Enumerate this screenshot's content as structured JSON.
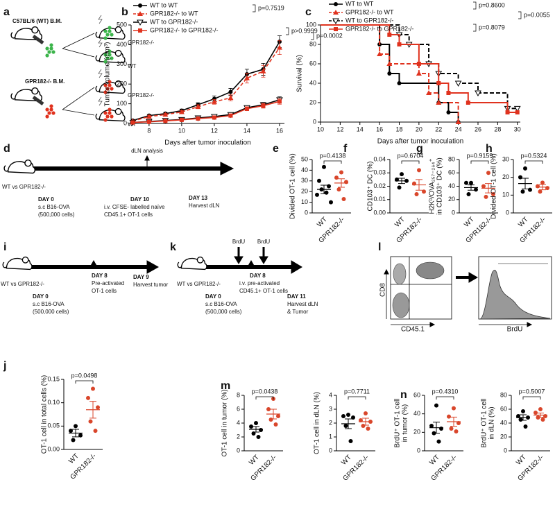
{
  "panels": {
    "a": {
      "label": "a",
      "donor_wt": "C57BL/6 (WT) B.M.",
      "donor_ko": "GPR182-/- B.M.",
      "recipients": [
        "GPR182-/-",
        "WT",
        "GPR182-/-",
        "WT"
      ]
    },
    "d": {
      "label": "d",
      "group": "WT vs GPR182-/-",
      "marker": "dLN analysis",
      "steps": [
        {
          "day": "DAY 0",
          "lines": [
            "s.c B16-OVA",
            "(500,000 cells)"
          ]
        },
        {
          "day": "DAY 10",
          "lines": [
            "i.v. CFSE- labelled naïve",
            "CD45.1+  OT-1 cells"
          ]
        },
        {
          "day": "DAY 13",
          "lines": [
            "Harvest dLN"
          ]
        }
      ]
    },
    "i": {
      "label": "i",
      "group": "WT vs GPR182-/-",
      "steps": [
        {
          "day": "DAY 0",
          "lines": [
            "s.c B16-OVA",
            "(500,000 cells)"
          ]
        },
        {
          "day": "DAY 8",
          "lines": [
            "Pre-activated",
            "OT-1 cells"
          ]
        },
        {
          "day": "DAY 9",
          "lines": [
            "Harvest tumor"
          ]
        }
      ]
    },
    "k": {
      "label": "k",
      "group": "WT vs GPR182-/-",
      "pulses": [
        "BrdU",
        "BrdU"
      ],
      "steps": [
        {
          "day": "DAY 0",
          "lines": [
            "s.c B16-OVA",
            "(500,000 cells)"
          ]
        },
        {
          "day": "DAY 8",
          "lines": [
            "i.v. pre-activated",
            "CD45.1+ OT-1 cells"
          ]
        },
        {
          "day": "DAY 11",
          "lines": [
            "Harvest dLN",
            "& Tumor"
          ]
        }
      ]
    },
    "l": {
      "label": "l",
      "y_axis": "CD8",
      "x_axis": "CD45.1",
      "histogram_axis": "BrdU"
    }
  },
  "chart_data": [
    {
      "type": "line",
      "label": "b",
      "xlabel": "Days after tumor inoculation",
      "ylabel": "Tumor volume (mm³)",
      "x": [
        7,
        8,
        9,
        10,
        11,
        12,
        13,
        14,
        15,
        16
      ],
      "xlim": [
        6.9,
        16.3
      ],
      "xticks": [
        8,
        10,
        12,
        14,
        16
      ],
      "ylim": [
        0,
        500
      ],
      "yticks": [
        0,
        100,
        200,
        300,
        400,
        500
      ],
      "series": [
        {
          "name": "WT to WT",
          "color": "#000000",
          "marker": "circle",
          "dash": false,
          "values": [
            15,
            40,
            50,
            65,
            95,
            125,
            160,
            250,
            275,
            415
          ],
          "errors": [
            3,
            5,
            6,
            8,
            10,
            15,
            18,
            25,
            30,
            30
          ]
        },
        {
          "name": "GPR182-/- to WT",
          "color": "#e0321e",
          "marker": "triangle",
          "dash": true,
          "values": [
            12,
            35,
            45,
            58,
            85,
            110,
            130,
            230,
            265,
            385
          ],
          "errors": [
            3,
            5,
            5,
            7,
            10,
            12,
            15,
            25,
            30,
            35
          ]
        },
        {
          "name": "WT to GPR182-/-",
          "color": "#000000",
          "marker": "triangle-down",
          "dash": false,
          "values": [
            5,
            10,
            15,
            20,
            28,
            35,
            45,
            80,
            95,
            120
          ],
          "errors": [
            2,
            3,
            3,
            4,
            5,
            6,
            7,
            10,
            12,
            15
          ]
        },
        {
          "name": "GPR182-/- to GPR182-/-",
          "color": "#e0321e",
          "marker": "square",
          "dash": false,
          "values": [
            5,
            8,
            13,
            18,
            25,
            30,
            40,
            75,
            90,
            112
          ],
          "errors": [
            2,
            2,
            3,
            3,
            4,
            5,
            6,
            10,
            12,
            14
          ]
        }
      ],
      "annotations": [
        "p=0.7519",
        "p=0.0002",
        "p>0.9999"
      ]
    },
    {
      "type": "step",
      "label": "c",
      "xlabel": "Days after tumor inoculation",
      "ylabel": "Survival (%)",
      "xlim": [
        10,
        30.3
      ],
      "xticks": [
        10,
        12,
        14,
        16,
        18,
        20,
        22,
        24,
        26,
        28,
        30
      ],
      "ylim": [
        0,
        100
      ],
      "yticks": [
        0,
        20,
        40,
        60,
        80,
        100
      ],
      "series": [
        {
          "name": "WT to WT",
          "color": "#000000",
          "marker": "circle",
          "dash": false,
          "x": [
            10,
            16,
            17,
            18,
            22,
            23,
            24
          ],
          "values": [
            100,
            80,
            50,
            40,
            20,
            10,
            0
          ]
        },
        {
          "name": "GPR182-/- to WT",
          "color": "#e0321e",
          "marker": "triangle",
          "dash": true,
          "x": [
            10,
            16,
            17,
            20,
            21,
            22,
            24
          ],
          "values": [
            100,
            70,
            60,
            50,
            30,
            20,
            0
          ]
        },
        {
          "name": "WT to GPR182-/-",
          "color": "#000000",
          "marker": "triangle-down",
          "dash": true,
          "x": [
            10,
            18,
            19,
            21,
            22,
            24,
            26,
            29,
            30
          ],
          "values": [
            100,
            90,
            80,
            60,
            50,
            40,
            30,
            14,
            14
          ]
        },
        {
          "name": "GPR182-/- to GPR182-/-",
          "color": "#e0321e",
          "marker": "square",
          "dash": false,
          "x": [
            10,
            17,
            18,
            20,
            22,
            23,
            25,
            29,
            30
          ],
          "values": [
            100,
            90,
            80,
            60,
            40,
            30,
            20,
            10,
            10
          ]
        }
      ],
      "annotations": [
        "p=0.8600",
        "p=0.8079",
        "p=0.0055"
      ]
    },
    {
      "type": "dot",
      "label": "e",
      "ylabel": [
        "Divided OT-1 cell (%)"
      ],
      "categories": [
        "WT",
        "GPR182-/-"
      ],
      "ylim": [
        0,
        50
      ],
      "yticks": [
        0,
        10,
        20,
        30,
        40,
        50
      ],
      "groups": [
        {
          "color": "#000000",
          "values": [
            43,
            30,
            25,
            22,
            19,
            17,
            10
          ],
          "mean": 22,
          "sem": 4
        },
        {
          "color": "#d9462b",
          "values": [
            38,
            33,
            29,
            22,
            13
          ],
          "mean": 28,
          "sem": 4
        }
      ],
      "annotation": "p=0.4138"
    },
    {
      "type": "dot",
      "label": "f",
      "ylabel": [
        "CD103⁺ DC (%)"
      ],
      "categories": [
        "WT",
        "GPR182-/-"
      ],
      "ylim": [
        0,
        0.04
      ],
      "yticks": [
        {
          "value": 0,
          "label": "0.00"
        },
        {
          "value": 0.01,
          "label": "0.01"
        },
        {
          "value": 0.02,
          "label": "0.02"
        },
        {
          "value": 0.03,
          "label": "0.03"
        },
        {
          "value": 0.04,
          "label": "0.04"
        }
      ],
      "groups": [
        {
          "color": "#000000",
          "values": [
            0.029,
            0.025,
            0.024,
            0.019
          ],
          "mean": 0.024,
          "sem": 0.002
        },
        {
          "color": "#d9462b",
          "values": [
            0.032,
            0.022,
            0.016,
            0.014
          ],
          "mean": 0.021,
          "sem": 0.004
        }
      ],
      "annotation": "p=0.6704"
    },
    {
      "type": "dot",
      "label": "g",
      "ylabel": [
        "H2Kᵇ/OVA₂₅₇₋₂₆₄⁺",
        "in CD103⁺ DC (%)"
      ],
      "categories": [
        "WT",
        "GPR182-/-"
      ],
      "ylim": [
        0,
        80
      ],
      "yticks": [
        0,
        20,
        40,
        60,
        80
      ],
      "groups": [
        {
          "color": "#000000",
          "values": [
            45,
            45,
            35,
            28
          ],
          "mean": 38,
          "sem": 4
        },
        {
          "color": "#d9462b",
          "values": [
            60,
            40,
            28,
            24
          ],
          "mean": 37,
          "sem": 7
        }
      ],
      "annotation": "p=0.9159"
    },
    {
      "type": "dot",
      "label": "h",
      "ylabel": [
        "Divided OT-1 cell (%)"
      ],
      "categories": [
        "WT",
        "GPR182-/-"
      ],
      "ylim": [
        0,
        30
      ],
      "yticks": [
        0,
        10,
        20,
        30
      ],
      "groups": [
        {
          "color": "#000000",
          "values": [
            25,
            20,
            13,
            12
          ],
          "mean": 16.5,
          "sem": 3
        },
        {
          "color": "#d9462b",
          "values": [
            17,
            15,
            14,
            12
          ],
          "mean": 14.5,
          "sem": 1.5
        }
      ],
      "annotation": "p=0.5324"
    },
    {
      "type": "dot",
      "label": "j",
      "ylabel": [
        "OT-1 cell in total cells (%)"
      ],
      "categories": [
        "WT",
        "GPR182-/-"
      ],
      "ylim": [
        0,
        0.15
      ],
      "yticks": [
        {
          "value": 0,
          "label": "0.00"
        },
        {
          "value": 0.05,
          "label": "0.05"
        },
        {
          "value": 0.1,
          "label": "0.10"
        },
        {
          "value": 0.15,
          "label": "0.15"
        }
      ],
      "groups": [
        {
          "color": "#000000",
          "values": [
            0.05,
            0.04,
            0.03,
            0.02
          ],
          "mean": 0.035,
          "sem": 0.008
        },
        {
          "color": "#d9462b",
          "values": [
            0.13,
            0.11,
            0.09,
            0.06,
            0.04
          ],
          "mean": 0.085,
          "sem": 0.018
        }
      ],
      "annotation": "p=0.0498"
    },
    {
      "type": "dot",
      "label": "m",
      "ylabel": [
        "OT-1 cell in tumor (%)"
      ],
      "categories": [
        "WT",
        "GPR182-/-"
      ],
      "ylim": [
        0,
        8
      ],
      "yticks": [
        0,
        2,
        4,
        6,
        8
      ],
      "groups": [
        {
          "color": "#000000",
          "values": [
            4,
            3.5,
            3,
            2.5,
            2
          ],
          "mean": 3.1,
          "sem": 0.4
        },
        {
          "color": "#d9462b",
          "values": [
            7.5,
            6,
            5,
            4.5,
            3.8
          ],
          "mean": 5.3,
          "sem": 0.7
        }
      ],
      "annotation": "p=0.0438"
    },
    {
      "type": "dot",
      "ylabel": [
        "OT-1 cell in dLN (%)"
      ],
      "categories": [
        "WT",
        "GPR182-/-"
      ],
      "ylim": [
        0,
        4
      ],
      "yticks": [
        0,
        1,
        2,
        3,
        4
      ],
      "groups": [
        {
          "color": "#000000",
          "values": [
            2.6,
            2.5,
            2.4,
            1.8,
            0.7
          ],
          "mean": 1.95,
          "sem": 0.35
        },
        {
          "color": "#d9462b",
          "values": [
            2.7,
            2.2,
            2.1,
            1.8,
            1.6
          ],
          "mean": 2.1,
          "sem": 0.25
        }
      ],
      "annotation": "p=0.7711"
    },
    {
      "type": "dot",
      "label": "n",
      "ylabel": [
        "BrdU⁺ OT-1 cell",
        "in tumor (%)"
      ],
      "categories": [
        "WT",
        "GPR182-/-"
      ],
      "ylim": [
        0,
        60
      ],
      "yticks": [
        0,
        20,
        40,
        60
      ],
      "groups": [
        {
          "color": "#000000",
          "values": [
            49,
            27,
            24,
            19,
            10
          ],
          "mean": 25,
          "sem": 6
        },
        {
          "color": "#d9462b",
          "values": [
            46,
            37,
            30,
            24,
            21
          ],
          "mean": 31.5,
          "sem": 5
        }
      ],
      "annotation": "p=0.4310"
    },
    {
      "type": "dot",
      "ylabel": [
        "BrdU⁺ OT-1 cell",
        "in dLN (%)"
      ],
      "categories": [
        "WT",
        "GPR182-/-"
      ],
      "ylim": [
        0,
        80
      ],
      "yticks": [
        0,
        20,
        40,
        60,
        80
      ],
      "groups": [
        {
          "color": "#000000",
          "values": [
            57,
            50,
            48,
            45,
            35
          ],
          "mean": 48,
          "sem": 4
        },
        {
          "color": "#d9462b",
          "values": [
            60,
            55,
            50,
            48,
            45
          ],
          "mean": 51.5,
          "sem": 3
        }
      ],
      "annotation": "p=0.5007"
    }
  ]
}
